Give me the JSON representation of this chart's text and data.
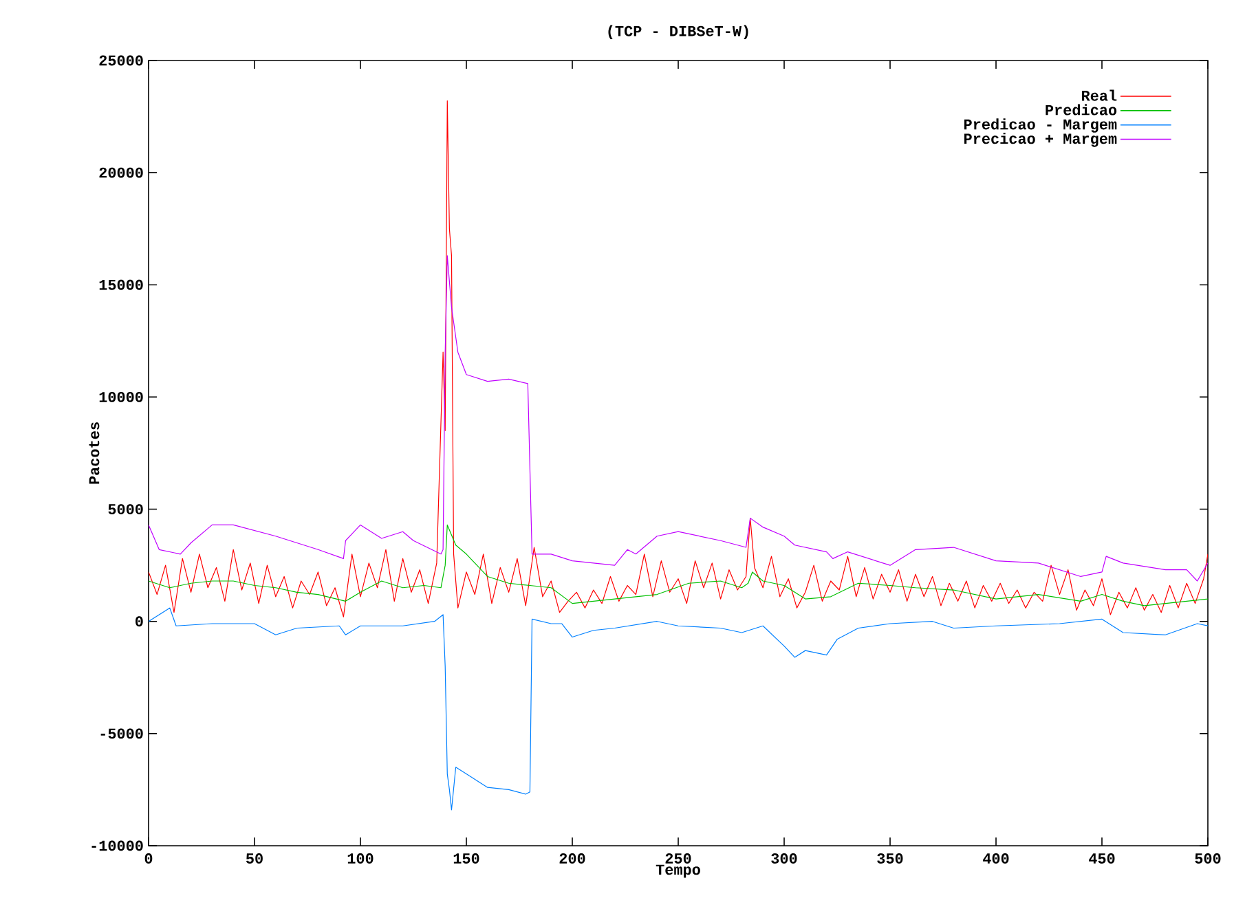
{
  "chart_data": {
    "type": "line",
    "title": "(TCP - DIBSeT-W)",
    "xlabel": "Tempo",
    "ylabel": "Pacotes",
    "xlim": [
      0,
      500
    ],
    "ylim": [
      -10000,
      25000
    ],
    "xticks": [
      0,
      50,
      100,
      150,
      200,
      250,
      300,
      350,
      400,
      450,
      500
    ],
    "yticks": [
      -10000,
      -5000,
      0,
      5000,
      10000,
      15000,
      20000,
      25000
    ],
    "legend": "top right",
    "grid": false,
    "marker": "none",
    "line_style": "solid",
    "series": [
      {
        "name": "Real",
        "color": "#ff0000",
        "x": [
          0,
          4,
          8,
          12,
          16,
          20,
          24,
          28,
          32,
          36,
          40,
          44,
          48,
          52,
          56,
          60,
          64,
          68,
          72,
          76,
          80,
          84,
          88,
          92,
          96,
          100,
          104,
          108,
          112,
          116,
          120,
          124,
          128,
          132,
          136,
          139,
          140,
          141,
          142,
          143,
          144,
          146,
          150,
          154,
          158,
          162,
          166,
          170,
          174,
          178,
          182,
          186,
          190,
          194,
          198,
          202,
          206,
          210,
          214,
          218,
          222,
          226,
          230,
          234,
          238,
          242,
          246,
          250,
          254,
          258,
          262,
          266,
          270,
          274,
          278,
          282,
          284,
          286,
          290,
          294,
          298,
          302,
          306,
          310,
          314,
          318,
          322,
          326,
          330,
          334,
          338,
          342,
          346,
          350,
          354,
          358,
          362,
          366,
          370,
          374,
          378,
          382,
          386,
          390,
          394,
          398,
          402,
          406,
          410,
          414,
          418,
          422,
          426,
          430,
          434,
          438,
          442,
          446,
          450,
          454,
          458,
          462,
          466,
          470,
          474,
          478,
          482,
          486,
          490,
          494,
          498,
          500
        ],
        "values": [
          2200,
          1200,
          2500,
          400,
          2800,
          1300,
          3000,
          1500,
          2400,
          900,
          3200,
          1400,
          2600,
          800,
          2500,
          1100,
          2000,
          600,
          1800,
          1200,
          2200,
          700,
          1500,
          200,
          3000,
          1100,
          2600,
          1500,
          3200,
          900,
          2800,
          1300,
          2300,
          800,
          2600,
          12000,
          8500,
          23200,
          17500,
          16300,
          3000,
          600,
          2200,
          1200,
          3000,
          800,
          2400,
          1300,
          2800,
          700,
          3300,
          1100,
          1800,
          400,
          900,
          1300,
          600,
          1400,
          800,
          2000,
          900,
          1600,
          1200,
          3000,
          1100,
          2700,
          1300,
          1900,
          800,
          2700,
          1500,
          2600,
          1000,
          2300,
          1400,
          2000,
          4600,
          2400,
          1500,
          2900,
          1100,
          1900,
          600,
          1300,
          2500,
          900,
          1800,
          1400,
          2900,
          1100,
          2400,
          1000,
          2100,
          1300,
          2300,
          900,
          2100,
          1100,
          2000,
          700,
          1700,
          900,
          1800,
          600,
          1600,
          900,
          1700,
          800,
          1400,
          600,
          1300,
          900,
          2500,
          1200,
          2300,
          500,
          1400,
          700,
          1900,
          300,
          1300,
          600,
          1500,
          500,
          1200,
          400,
          1600,
          600,
          1700,
          800,
          1900,
          3000
        ]
      },
      {
        "name": "Predicao",
        "color": "#00c000",
        "x": [
          0,
          10,
          20,
          30,
          40,
          50,
          60,
          70,
          80,
          93,
          100,
          110,
          120,
          130,
          138,
          140,
          141,
          145,
          150,
          160,
          170,
          180,
          190,
          200,
          210,
          220,
          230,
          240,
          255,
          270,
          280,
          283,
          285,
          290,
          300,
          310,
          322,
          335,
          350,
          362,
          380,
          400,
          420,
          440,
          450,
          460,
          470,
          480,
          490,
          500
        ],
        "values": [
          1800,
          1500,
          1700,
          1800,
          1800,
          1600,
          1500,
          1300,
          1200,
          900,
          1300,
          1800,
          1500,
          1600,
          1500,
          2500,
          4300,
          3400,
          3000,
          2000,
          1700,
          1600,
          1500,
          800,
          900,
          1000,
          1100,
          1200,
          1700,
          1800,
          1500,
          1700,
          2200,
          1800,
          1600,
          1000,
          1100,
          1700,
          1600,
          1500,
          1400,
          1000,
          1200,
          900,
          1200,
          900,
          700,
          800,
          900,
          1000
        ]
      },
      {
        "name": "Predicao - Margem",
        "color": "#0080ff",
        "x": [
          0,
          10,
          13,
          30,
          50,
          60,
          70,
          90,
          93,
          100,
          120,
          135,
          139,
          140,
          141,
          142,
          143,
          145,
          150,
          160,
          170,
          178,
          180,
          181,
          190,
          195,
          200,
          210,
          220,
          240,
          250,
          270,
          280,
          290,
          300,
          305,
          310,
          320,
          325,
          335,
          350,
          370,
          380,
          400,
          430,
          450,
          460,
          480,
          495,
          500
        ],
        "values": [
          0,
          600,
          -200,
          -100,
          -100,
          -600,
          -300,
          -200,
          -600,
          -200,
          -200,
          0,
          300,
          -2000,
          -6800,
          -7500,
          -8400,
          -6500,
          -6800,
          -7400,
          -7500,
          -7700,
          -7600,
          100,
          -100,
          -100,
          -700,
          -400,
          -300,
          0,
          -200,
          -300,
          -500,
          -200,
          -1100,
          -1600,
          -1300,
          -1500,
          -800,
          -300,
          -100,
          0,
          -300,
          -200,
          -100,
          100,
          -500,
          -600,
          -100,
          -200
        ]
      },
      {
        "name": "Precicao + Margem",
        "color": "#c000ff",
        "x": [
          0,
          5,
          15,
          20,
          30,
          40,
          60,
          80,
          92,
          93,
          100,
          110,
          120,
          125,
          138,
          139,
          140,
          141,
          143,
          146,
          150,
          160,
          170,
          179,
          181,
          190,
          200,
          220,
          226,
          230,
          240,
          250,
          270,
          282,
          284,
          290,
          300,
          305,
          320,
          323,
          330,
          350,
          362,
          380,
          400,
          420,
          440,
          450,
          452,
          460,
          480,
          490,
          495,
          500
        ],
        "values": [
          4300,
          3200,
          3000,
          3500,
          4300,
          4300,
          3800,
          3200,
          2800,
          3600,
          4300,
          3700,
          4000,
          3600,
          3000,
          3200,
          12000,
          16300,
          14000,
          12000,
          11000,
          10700,
          10800,
          10600,
          3000,
          3000,
          2700,
          2500,
          3200,
          3000,
          3800,
          4000,
          3600,
          3300,
          4600,
          4200,
          3800,
          3400,
          3100,
          2800,
          3100,
          2500,
          3200,
          3300,
          2700,
          2600,
          2000,
          2200,
          2900,
          2600,
          2300,
          2300,
          1800,
          2600
        ]
      }
    ]
  }
}
